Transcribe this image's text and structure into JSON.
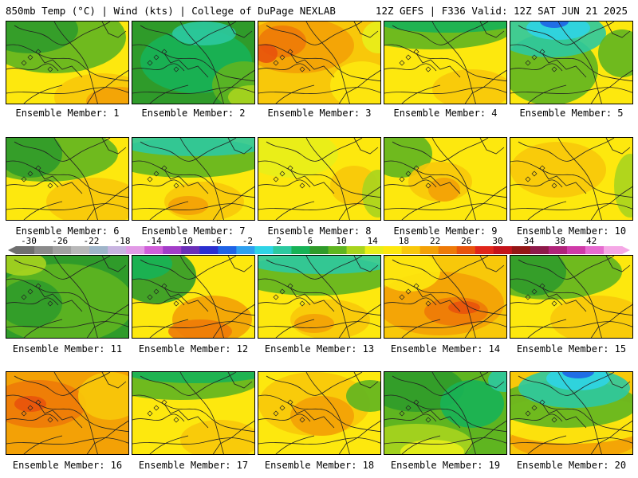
{
  "header": {
    "left": "850mb Temp (°C) | Wind (kts) | College of DuPage NEXLAB",
    "right": "12Z GEFS | F336 Valid: 12Z SAT JUN 21 2025"
  },
  "colorbar": {
    "labels": [
      "-30",
      "-26",
      "-22",
      "-18",
      "-14",
      "-10",
      "-6",
      "-2",
      "2",
      "6",
      "10",
      "14",
      "18",
      "22",
      "26",
      "30",
      "34",
      "38",
      "42"
    ],
    "colors": [
      "#6f6f6f",
      "#8a8a8a",
      "#a1a1a1",
      "#b8b8b8",
      "#9fb5c9",
      "#c8b4e0",
      "#e29ae6",
      "#d05ed9",
      "#a33dc8",
      "#6b2fb8",
      "#2b2fd0",
      "#1f63e6",
      "#2ea0f0",
      "#2fd4e6",
      "#2cc9a0",
      "#17b257",
      "#2f9b2a",
      "#5fb520",
      "#a8d41e",
      "#e8ee1a",
      "#fde80e",
      "#f8c80a",
      "#f3a106",
      "#ee7a08",
      "#e8530c",
      "#e0261a",
      "#c5131a",
      "#941616",
      "#8e1a4a",
      "#b0237a",
      "#cf3aa8",
      "#e66bd0",
      "#f5a8e6"
    ]
  },
  "members": [
    {
      "caption": "Ensemble Member: 1",
      "theme": "blend1"
    },
    {
      "caption": "Ensemble Member: 2",
      "theme": "green"
    },
    {
      "caption": "Ensemble Member: 3",
      "theme": "hotNW"
    },
    {
      "caption": "Ensemble Member: 4",
      "theme": "yellowGreenTop"
    },
    {
      "caption": "Ensemble Member: 5",
      "theme": "coolTop"
    },
    {
      "caption": "Ensemble Member: 6",
      "theme": "greenYellow"
    },
    {
      "caption": "Ensemble Member: 7",
      "theme": "tealTop"
    },
    {
      "caption": "Ensemble Member: 8",
      "theme": "yellow"
    },
    {
      "caption": "Ensemble Member: 9",
      "theme": "yellowOrangeCenter"
    },
    {
      "caption": "Ensemble Member: 10",
      "theme": "yellowGreen"
    },
    {
      "caption": "Ensemble Member: 11",
      "theme": "allGreen"
    },
    {
      "caption": "Ensemble Member: 12",
      "theme": "orangeSE"
    },
    {
      "caption": "Ensemble Member: 13",
      "theme": "tealTop"
    },
    {
      "caption": "Ensemble Member: 14",
      "theme": "orangeCenter"
    },
    {
      "caption": "Ensemble Member: 15",
      "theme": "greenYellow"
    },
    {
      "caption": "Ensemble Member: 16",
      "theme": "orangeAll"
    },
    {
      "caption": "Ensemble Member: 17",
      "theme": "yellowGreenTop"
    },
    {
      "caption": "Ensemble Member: 18",
      "theme": "yellowOrange"
    },
    {
      "caption": "Ensemble Member: 19",
      "theme": "greenYellowNE"
    },
    {
      "caption": "Ensemble Member: 20",
      "theme": "blueTop"
    }
  ]
}
